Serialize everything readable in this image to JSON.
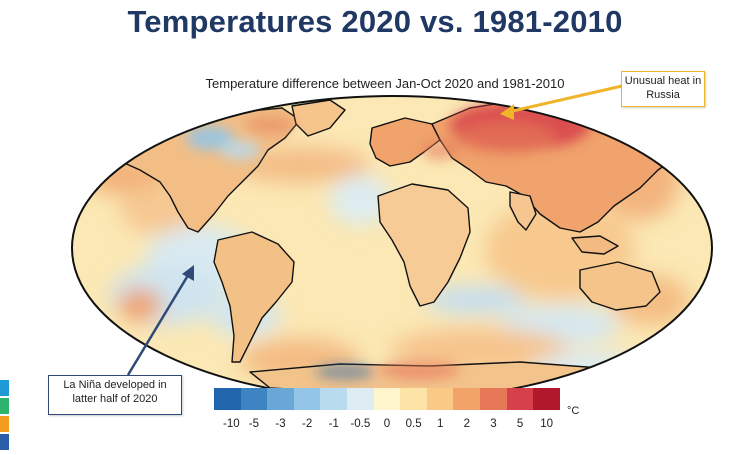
{
  "slide": {
    "title": "Temperatures 2020 vs. 1981-2010"
  },
  "map": {
    "subtitle": "Temperature difference between Jan-Oct 2020 and 1981-2010",
    "ocean_base_color": "#fbe8b4",
    "land_base_color": "#f4c48c",
    "outline_color": "#111111"
  },
  "callouts": {
    "russia": "Unusual heat in Russia",
    "lanina": "La Niña developed in latter half of 2020",
    "russia_border": "#f0b429",
    "lanina_border": "#2f4a78"
  },
  "legend": {
    "unit": "°C",
    "ticks": [
      "-10",
      "-5",
      "-3",
      "-2",
      "-1",
      "-0.5",
      "0",
      "0.5",
      "1",
      "2",
      "3",
      "5",
      "10"
    ],
    "colors": [
      "#2166ac",
      "#3c84c2",
      "#6aa7d6",
      "#93c5e6",
      "#b8dbee",
      "#dcecf2",
      "#fff5cc",
      "#fde4a6",
      "#f9c985",
      "#f2a468",
      "#e67858",
      "#d6404a",
      "#b2182b"
    ]
  },
  "edge_strip_colors": [
    "#1f9ad6",
    "#2db36b",
    "#f39c1f",
    "#2a5ea8"
  ]
}
